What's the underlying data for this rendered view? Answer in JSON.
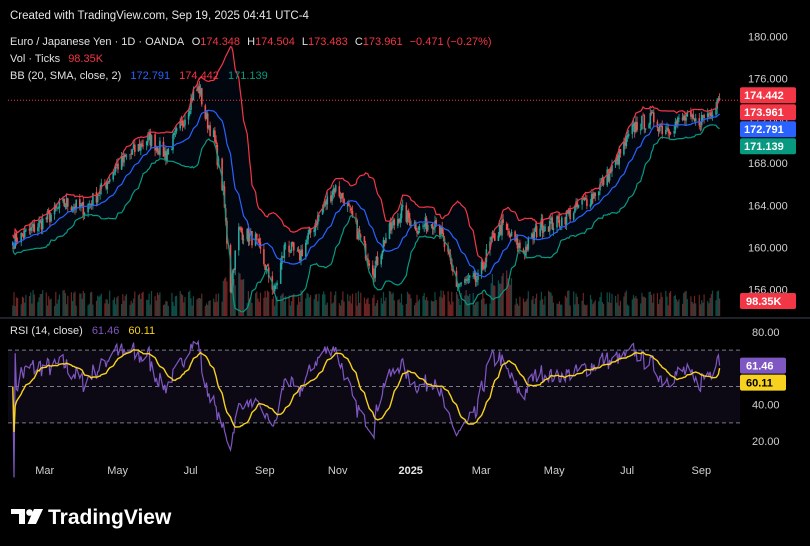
{
  "header": {
    "created_text": "Created with TradingView.com, Sep 19, 2025 04:41 UTC-4"
  },
  "legend": {
    "symbol": "Euro / Japanese Yen · 1D · OANDA",
    "ohlc": {
      "o_label": "O",
      "o": "174.348",
      "h_label": "H",
      "h": "174.504",
      "l_label": "L",
      "l": "173.483",
      "c_label": "C",
      "c": "173.961",
      "change": "−0.471 (−0.27%)"
    },
    "volume_label": "Vol · Ticks",
    "volume_value": "98.35K",
    "bb_label": "BB (20, SMA, close, 2)",
    "bb_basis": "172.791",
    "bb_upper": "174.442",
    "bb_lower": "171.139",
    "rsi_label": "RSI (14, close)",
    "rsi_value": "61.46",
    "rsi_ma": "60.11"
  },
  "brand": {
    "name": "TradingView"
  },
  "colors": {
    "background": "#000000",
    "up": "#26a69a",
    "down": "#ef5350",
    "bb_upper": "#f23645",
    "bb_basis": "#2962ff",
    "bb_lower": "#089981",
    "rsi_line": "#7e57c2",
    "rsi_ma": "#f7d21e",
    "tag_price": "#f23645",
    "tag_basis": "#2962ff",
    "tag_lower": "#089981",
    "tag_volume": "#f23645",
    "rsi_tag_line": "#7e57c2",
    "rsi_tag_ma": "#f7d21e"
  },
  "chart_data": [
    {
      "type": "candlestick",
      "title": "Euro / Japanese Yen · 1D · OANDA",
      "y_ticks": [
        180,
        176,
        172,
        168,
        164,
        160,
        156
      ],
      "ylim": [
        153.5,
        181.0
      ],
      "x_ticks": [
        "Mar",
        "May",
        "Jul",
        "Sep",
        "Nov",
        "2025",
        "Mar",
        "May",
        "Jul",
        "Sep"
      ],
      "last_price": 173.961,
      "price_tags": [
        {
          "label": "174.442",
          "value": 174.442,
          "series": "bb_upper"
        },
        {
          "label": "173.961",
          "value": 173.961,
          "series": "price"
        },
        {
          "label": "172.791",
          "value": 172.791,
          "series": "bb_basis"
        },
        {
          "label": "171.139",
          "value": 171.139,
          "series": "bb_lower"
        }
      ],
      "volume_tag": "98.35K",
      "close_anchors": [
        {
          "date": "2024-02-05",
          "close": 160.5
        },
        {
          "date": "2024-02-20",
          "close": 161.6
        },
        {
          "date": "2024-03-05",
          "close": 162.8
        },
        {
          "date": "2024-03-20",
          "close": 164.2
        },
        {
          "date": "2024-04-05",
          "close": 163.6
        },
        {
          "date": "2024-04-20",
          "close": 165.6
        },
        {
          "date": "2024-05-01",
          "close": 167.6
        },
        {
          "date": "2024-05-15",
          "close": 169.0
        },
        {
          "date": "2024-05-29",
          "close": 170.4
        },
        {
          "date": "2024-06-12",
          "close": 168.8
        },
        {
          "date": "2024-06-25",
          "close": 171.6
        },
        {
          "date": "2024-07-05",
          "close": 174.6
        },
        {
          "date": "2024-07-10",
          "close": 175.0
        },
        {
          "date": "2024-07-15",
          "close": 172.4
        },
        {
          "date": "2024-07-22",
          "close": 170.5
        },
        {
          "date": "2024-07-30",
          "close": 165.2
        },
        {
          "date": "2024-08-05",
          "close": 156.2
        },
        {
          "date": "2024-08-12",
          "close": 161.6
        },
        {
          "date": "2024-08-26",
          "close": 160.7
        },
        {
          "date": "2024-09-11",
          "close": 155.8
        },
        {
          "date": "2024-09-20",
          "close": 160.4
        },
        {
          "date": "2024-10-01",
          "close": 159.0
        },
        {
          "date": "2024-10-15",
          "close": 162.4
        },
        {
          "date": "2024-10-31",
          "close": 165.7
        },
        {
          "date": "2024-11-08",
          "close": 164.6
        },
        {
          "date": "2024-11-20",
          "close": 161.2
        },
        {
          "date": "2024-12-03",
          "close": 157.8
        },
        {
          "date": "2024-12-12",
          "close": 160.8
        },
        {
          "date": "2024-12-26",
          "close": 163.4
        },
        {
          "date": "2025-01-10",
          "close": 161.8
        },
        {
          "date": "2025-01-24",
          "close": 162.7
        },
        {
          "date": "2025-02-10",
          "close": 156.5
        },
        {
          "date": "2025-02-28",
          "close": 156.9
        },
        {
          "date": "2025-03-11",
          "close": 160.6
        },
        {
          "date": "2025-03-20",
          "close": 162.0
        },
        {
          "date": "2025-04-07",
          "close": 159.6
        },
        {
          "date": "2025-04-21",
          "close": 162.1
        },
        {
          "date": "2025-05-05",
          "close": 162.3
        },
        {
          "date": "2025-05-20",
          "close": 163.6
        },
        {
          "date": "2025-06-05",
          "close": 165.1
        },
        {
          "date": "2025-06-20",
          "close": 167.4
        },
        {
          "date": "2025-07-01",
          "close": 169.8
        },
        {
          "date": "2025-07-10",
          "close": 171.6
        },
        {
          "date": "2025-07-25",
          "close": 172.2
        },
        {
          "date": "2025-08-01",
          "close": 171.3
        },
        {
          "date": "2025-08-08",
          "close": 171.5
        },
        {
          "date": "2025-08-20",
          "close": 172.2
        },
        {
          "date": "2025-08-29",
          "close": 171.8
        },
        {
          "date": "2025-09-10",
          "close": 172.8
        },
        {
          "date": "2025-09-17",
          "close": 174.35
        },
        {
          "date": "2025-09-18",
          "close": 173.961
        }
      ]
    },
    {
      "type": "line",
      "title": "RSI (14, close)",
      "y_ticks": [
        80,
        60,
        40,
        20
      ],
      "ylim": [
        14,
        86
      ],
      "levels": [
        70,
        50,
        30
      ],
      "series": [
        {
          "name": "RSI (14, close)",
          "last": 61.46
        },
        {
          "name": "RSI-based MA",
          "last": 60.11
        }
      ]
    }
  ]
}
